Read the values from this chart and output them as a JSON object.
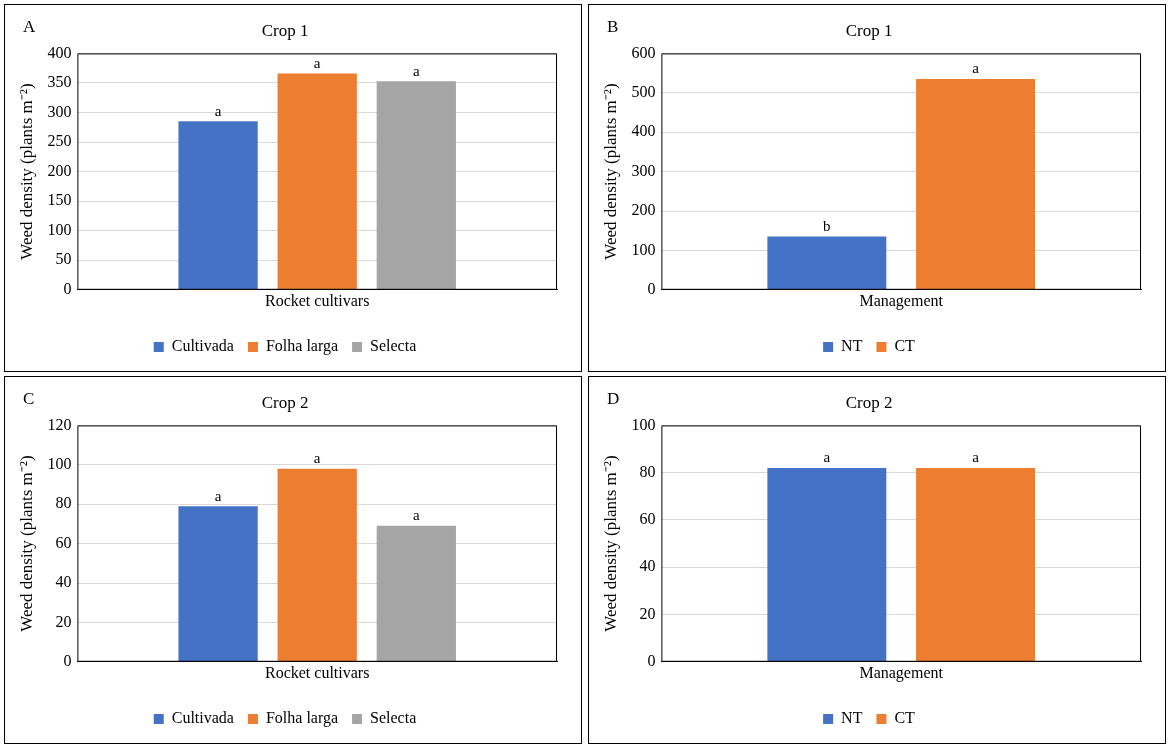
{
  "chart_data": [
    {
      "type": "bar",
      "title": "Crop 1",
      "xlabel": "Rocket cultivars",
      "ylabel": "Weed density (plants m⁻²)",
      "annotations": [
        "A"
      ],
      "categories": [
        null
      ],
      "ylim": [
        0,
        400
      ],
      "yticks": [
        0,
        50,
        100,
        150,
        200,
        250,
        300,
        350,
        400
      ],
      "grid": "y",
      "legend": "bottom",
      "series": [
        {
          "name": "Cultivada",
          "color": "#4472c4",
          "values": [
            285
          ],
          "value_labels": [
            "a"
          ]
        },
        {
          "name": "Folha larga",
          "color": "#ed7d31",
          "values": [
            366
          ],
          "value_labels": [
            "a"
          ]
        },
        {
          "name": "Selecta",
          "color": "#a5a5a5",
          "values": [
            353
          ],
          "value_labels": [
            "a"
          ]
        }
      ]
    },
    {
      "type": "bar",
      "title": "Crop 1",
      "xlabel": "Management",
      "ylabel": "Weed density (plants m⁻²)",
      "annotations": [
        "B"
      ],
      "categories": [
        null
      ],
      "ylim": [
        0,
        600
      ],
      "yticks": [
        0,
        100,
        200,
        300,
        400,
        500,
        600
      ],
      "grid": "y",
      "legend": "bottom",
      "series": [
        {
          "name": "NT",
          "color": "#4472c4",
          "values": [
            135
          ],
          "value_labels": [
            "b"
          ]
        },
        {
          "name": "CT",
          "color": "#ed7d31",
          "values": [
            535
          ],
          "value_labels": [
            "a"
          ]
        }
      ]
    },
    {
      "type": "bar",
      "title": "Crop 2",
      "xlabel": "Rocket cultivars",
      "ylabel": "Weed density (plants m⁻²)",
      "annotations": [
        "C"
      ],
      "categories": [
        null
      ],
      "ylim": [
        0,
        120
      ],
      "yticks": [
        0,
        20,
        40,
        60,
        80,
        100,
        120
      ],
      "grid": "y",
      "legend": "bottom",
      "series": [
        {
          "name": "Cultivada",
          "color": "#4472c4",
          "values": [
            79
          ],
          "value_labels": [
            "a"
          ]
        },
        {
          "name": "Folha larga",
          "color": "#ed7d31",
          "values": [
            98
          ],
          "value_labels": [
            "a"
          ]
        },
        {
          "name": "Selecta",
          "color": "#a5a5a5",
          "values": [
            69
          ],
          "value_labels": [
            "a"
          ]
        }
      ]
    },
    {
      "type": "bar",
      "title": "Crop 2",
      "xlabel": "Management",
      "ylabel": "Weed density (plants m⁻²)",
      "annotations": [
        "D"
      ],
      "categories": [
        null
      ],
      "ylim": [
        0,
        100
      ],
      "yticks": [
        0,
        20,
        40,
        60,
        80,
        100
      ],
      "grid": "y",
      "legend": "bottom",
      "series": [
        {
          "name": "NT",
          "color": "#4472c4",
          "values": [
            82
          ],
          "value_labels": [
            "a"
          ]
        },
        {
          "name": "CT",
          "color": "#ed7d31",
          "values": [
            82
          ],
          "value_labels": [
            "a"
          ]
        }
      ]
    }
  ]
}
